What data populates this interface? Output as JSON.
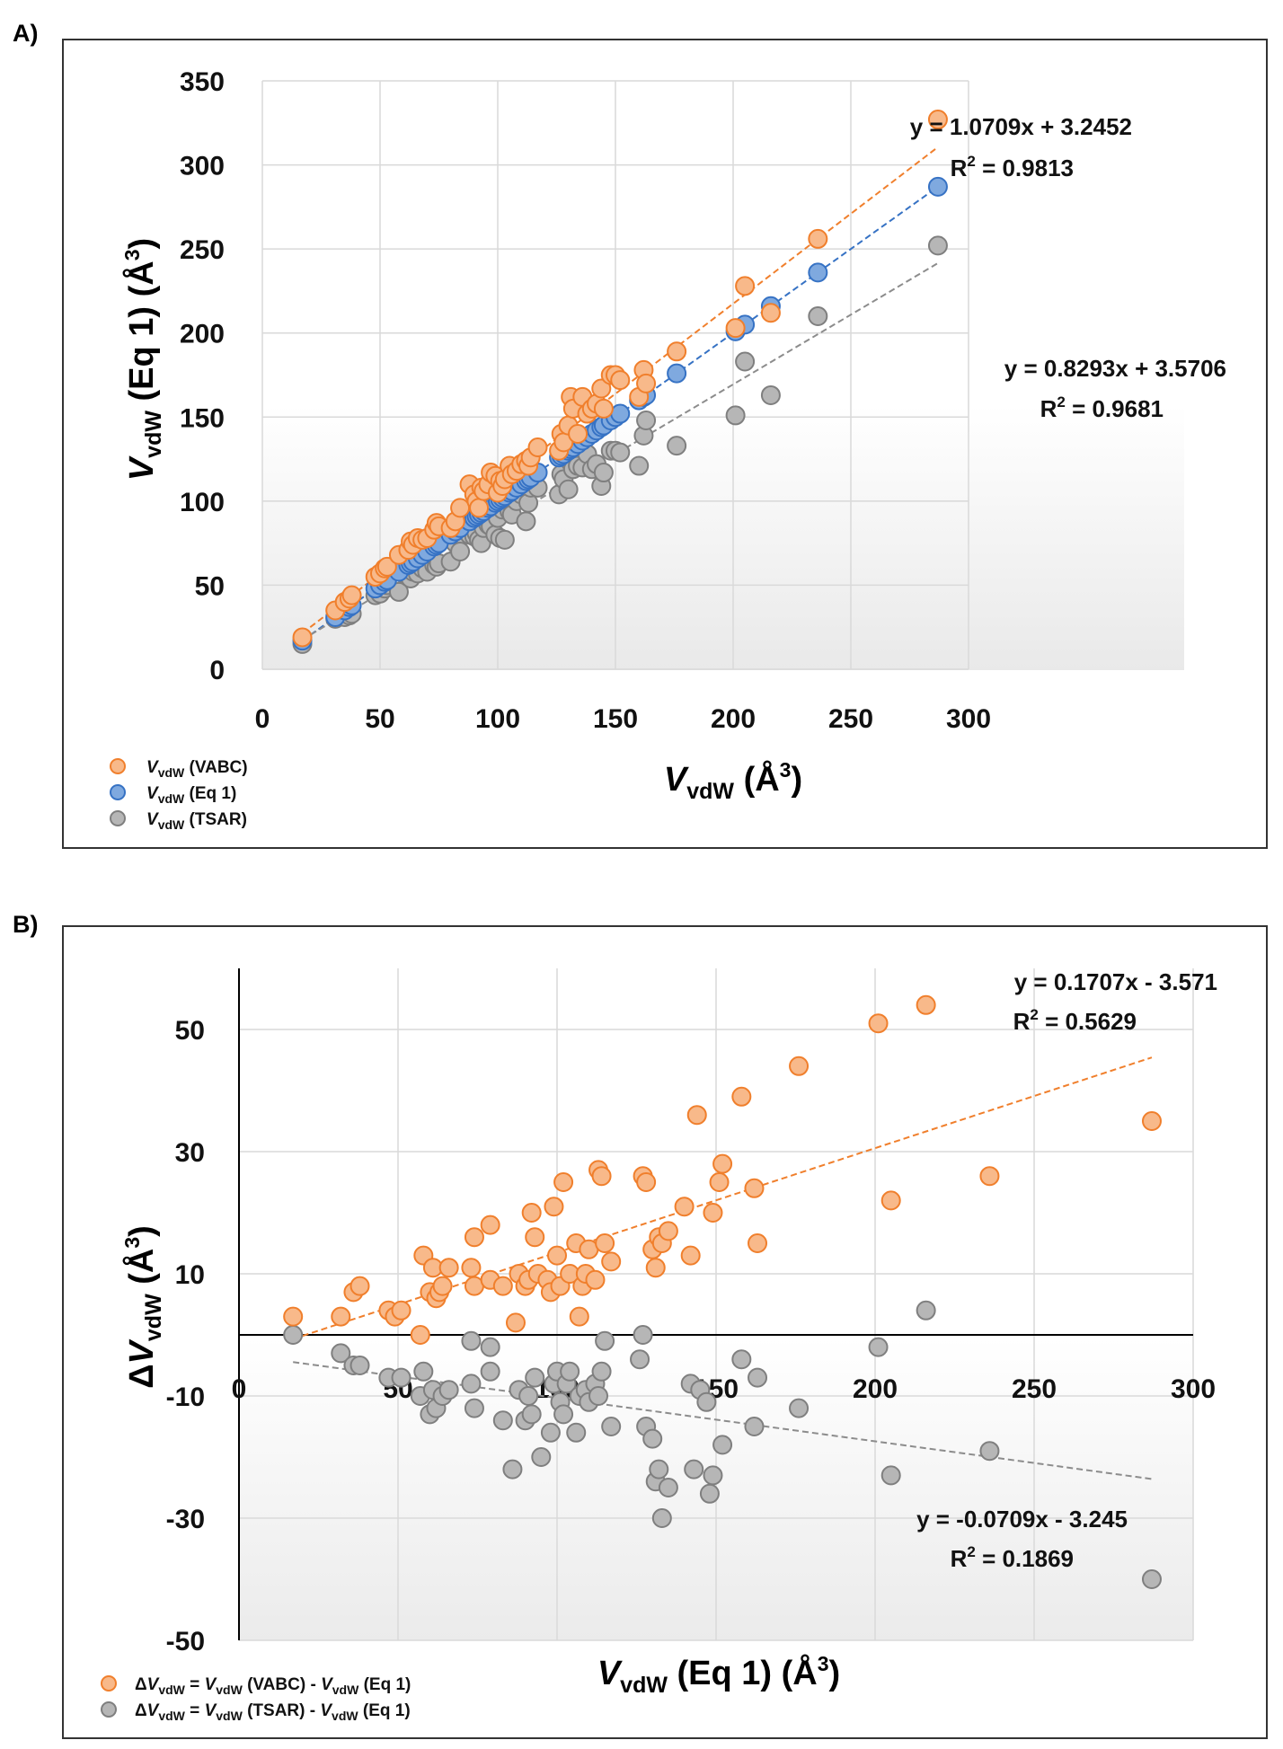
{
  "colors": {
    "vabc_fill": "#f8b98a",
    "vabc_stroke": "#f07f2c",
    "eq1_fill": "#7fa9df",
    "eq1_stroke": "#3672c4",
    "tsar_fill": "#b6b6b6",
    "tsar_stroke": "#7f7f7f",
    "fit_vabc": "#f07f2c",
    "fit_eq1": "#3672c4",
    "fit_tsar": "#8c8c8c",
    "frame": "#333333"
  },
  "chart_data": [
    {
      "id": "A",
      "panel_label": "A)",
      "type": "scatter",
      "xlabel": {
        "main": "V",
        "sub": "vdW",
        "unit_open": " (Å",
        "sup": "3",
        "unit_close": ")"
      },
      "ylabel": {
        "main": "V",
        "sub": "vdW",
        "unit_open": " (Eq 1) (Å",
        "sup": "3",
        "unit_close": ")"
      },
      "xlim": [
        0,
        300
      ],
      "ylim": [
        0,
        350
      ],
      "xticks": [
        "0",
        "50",
        "100",
        "150",
        "200",
        "250",
        "300"
      ],
      "yticks": [
        "0",
        "50",
        "100",
        "150",
        "200",
        "250",
        "300",
        "350"
      ],
      "grid": true,
      "legend_position": "bottom-left",
      "legend": [
        {
          "main": "V",
          "sub": "vdW",
          "rest": " (VABC)"
        },
        {
          "main": "V",
          "sub": "vdW",
          "rest": " (Eq 1)"
        },
        {
          "main": "V",
          "sub": "vdW",
          "rest": " (TSAR)"
        }
      ],
      "equations": [
        {
          "line1": "y = 1.0709x + 3.2452",
          "r2_prefix": "R",
          "r2_sup": "2",
          "r2_value": " = 0.9813",
          "series": "VABC"
        },
        {
          "line1": "y = 0.8293x + 3.5706",
          "r2_prefix": "R",
          "r2_sup": "2",
          "r2_value": " = 0.9681",
          "series": "TSAR"
        }
      ],
      "trendlines": [
        {
          "series": "VABC",
          "slope": 1.0709,
          "intercept": 3.2452,
          "x_range": [
            17,
            287
          ]
        },
        {
          "series": "Eq 1",
          "slope": 1.0,
          "intercept": 0.0,
          "x_range": [
            17,
            287
          ]
        },
        {
          "series": "TSAR",
          "slope": 0.8293,
          "intercept": 3.5706,
          "x_range": [
            17,
            287
          ]
        }
      ],
      "x": [
        17,
        31,
        35,
        37,
        38,
        48,
        50,
        52,
        53,
        58,
        62,
        63,
        64,
        66,
        68,
        70,
        73,
        74,
        75,
        80,
        82,
        84,
        88,
        90,
        91,
        92,
        93,
        94,
        96,
        97,
        99,
        100,
        101,
        102,
        103,
        105,
        106,
        108,
        110,
        112,
        113,
        114,
        117,
        126,
        127,
        128,
        130,
        131,
        132,
        134,
        136,
        138,
        140,
        142,
        144,
        145,
        148,
        150,
        152,
        160,
        162,
        163,
        176,
        201,
        205,
        216,
        236,
        287
      ],
      "series": [
        {
          "name": "VABC",
          "values": [
            19,
            35,
            40,
            42,
            44,
            55,
            57,
            60,
            61,
            68,
            71,
            76,
            74,
            78,
            77,
            78,
            83,
            87,
            85,
            84,
            88,
            96,
            110,
            104,
            100,
            96,
            108,
            106,
            110,
            117,
            115,
            105,
            112,
            109,
            113,
            121,
            116,
            118,
            122,
            124,
            121,
            126,
            132,
            130,
            140,
            135,
            145,
            162,
            155,
            140,
            162,
            152,
            155,
            158,
            167,
            155,
            175,
            175,
            172,
            162,
            178,
            170,
            189,
            203,
            228,
            212,
            256,
            327
          ]
        },
        {
          "name": "Eq 1",
          "values": [
            17,
            31,
            35,
            37,
            38,
            48,
            50,
            52,
            53,
            58,
            62,
            63,
            64,
            66,
            68,
            70,
            73,
            74,
            75,
            80,
            82,
            84,
            88,
            90,
            91,
            92,
            93,
            94,
            96,
            97,
            99,
            100,
            101,
            102,
            103,
            105,
            106,
            108,
            110,
            112,
            113,
            114,
            117,
            126,
            127,
            128,
            130,
            131,
            132,
            134,
            136,
            138,
            140,
            142,
            144,
            145,
            148,
            150,
            152,
            160,
            162,
            163,
            176,
            201,
            205,
            216,
            236,
            287
          ]
        },
        {
          "name": "TSAR",
          "values": [
            15,
            30,
            31,
            32,
            33,
            44,
            45,
            48,
            50,
            46,
            55,
            54,
            58,
            57,
            60,
            58,
            62,
            61,
            63,
            64,
            75,
            70,
            80,
            79,
            81,
            77,
            75,
            84,
            86,
            85,
            80,
            90,
            78,
            95,
            77,
            94,
            92,
            100,
            104,
            88,
            99,
            108,
            108,
            104,
            116,
            113,
            107,
            123,
            119,
            121,
            120,
            128,
            119,
            122,
            109,
            117,
            130,
            130,
            129,
            121,
            139,
            148,
            133,
            151,
            183,
            163,
            210,
            252
          ]
        }
      ]
    },
    {
      "id": "B",
      "panel_label": "B)",
      "type": "scatter",
      "xlabel": {
        "main": "V",
        "sub": "vdW",
        "unit_open": " (Eq 1) (Å",
        "sup": "3",
        "unit_close": ")"
      },
      "ylabel": {
        "prefix": "Δ",
        "main": "V",
        "sub": "vdW",
        "unit_open": " (Å",
        "sup": "3",
        "unit_close": ")"
      },
      "xlim": [
        0,
        300
      ],
      "ylim": [
        -50,
        60
      ],
      "xticks": [
        "0",
        "50",
        "100",
        "150",
        "200",
        "250",
        "300"
      ],
      "yticks": [
        "-50",
        "-30",
        "-10",
        "10",
        "30",
        "50"
      ],
      "ytick_values": [
        -50,
        -30,
        -10,
        10,
        30,
        50
      ],
      "grid": true,
      "legend_position": "bottom-left",
      "legend": [
        {
          "prefix": "Δ",
          "main": "V",
          "sub": "vdW",
          "mid": " = ",
          "main2": "V",
          "sub2": "vdW",
          "rest": " (VABC) - ",
          "main3": "V",
          "sub3": "vdW",
          "rest2": " (Eq 1)"
        },
        {
          "prefix": "Δ",
          "main": "V",
          "sub": "vdW",
          "mid": " = ",
          "main2": "V",
          "sub2": "vdW",
          "rest": " (TSAR) - ",
          "main3": "V",
          "sub3": "vdW",
          "rest2": " (Eq 1)"
        }
      ],
      "equations": [
        {
          "line1": "y = 0.1707x - 3.571",
          "r2_prefix": "R",
          "r2_sup": "2",
          "r2_value": " = 0.5629",
          "series": "VABC"
        },
        {
          "line1": "y = -0.0709x - 3.245",
          "r2_prefix": "R",
          "r2_sup": "2",
          "r2_value": " = 0.1869",
          "series": "TSAR"
        }
      ],
      "trendlines": [
        {
          "series": "VABC",
          "slope": 0.1707,
          "intercept": -3.571,
          "x_range": [
            17,
            287
          ]
        },
        {
          "series": "TSAR",
          "slope": -0.0709,
          "intercept": -3.245,
          "x_range": [
            17,
            287
          ]
        }
      ],
      "series": [
        {
          "name": "VABC",
          "x": [
            17,
            32,
            36,
            38,
            47,
            49,
            51,
            57,
            58,
            60,
            61,
            62,
            63,
            64,
            66,
            73,
            74,
            74,
            79,
            79,
            83,
            87,
            88,
            90,
            91,
            92,
            93,
            94,
            97,
            98,
            99,
            100,
            101,
            102,
            104,
            106,
            107,
            108,
            109,
            110,
            112,
            113,
            114,
            115,
            117,
            127,
            128,
            130,
            131,
            132,
            133,
            135,
            140,
            142,
            144,
            149,
            151,
            152,
            158,
            162,
            163,
            176,
            201,
            205,
            216,
            236,
            287
          ],
          "y": [
            3,
            3,
            7,
            8,
            4,
            3,
            4,
            0,
            13,
            7,
            11,
            6,
            7,
            8,
            11,
            11,
            16,
            8,
            18,
            9,
            8,
            2,
            10,
            8,
            9,
            20,
            16,
            10,
            9,
            7,
            21,
            13,
            8,
            25,
            10,
            15,
            3,
            8,
            10,
            14,
            9,
            27,
            26,
            15,
            12,
            26,
            25,
            14,
            11,
            16,
            15,
            17,
            21,
            13,
            36,
            20,
            25,
            28,
            39,
            24,
            15,
            44,
            51,
            22,
            54,
            26,
            35
          ]
        },
        {
          "name": "TSAR",
          "x": [
            17,
            32,
            36,
            38,
            47,
            51,
            57,
            58,
            60,
            61,
            62,
            64,
            66,
            73,
            73,
            74,
            79,
            79,
            83,
            86,
            88,
            90,
            91,
            92,
            93,
            95,
            98,
            99,
            100,
            101,
            102,
            103,
            104,
            106,
            107,
            109,
            110,
            112,
            113,
            114,
            115,
            117,
            126,
            127,
            128,
            130,
            131,
            132,
            133,
            135,
            142,
            143,
            145,
            147,
            148,
            149,
            152,
            158,
            162,
            163,
            176,
            201,
            205,
            216,
            236,
            287
          ],
          "y": [
            0,
            -3,
            -5,
            -5,
            -7,
            -7,
            -10,
            -6,
            -13,
            -9,
            -12,
            -10,
            -9,
            -1,
            -8,
            -12,
            -6,
            -2,
            -14,
            -22,
            -9,
            -14,
            -10,
            -13,
            -7,
            -20,
            -16,
            -8,
            -6,
            -11,
            -13,
            -8,
            -6,
            -16,
            -10,
            -9,
            -11,
            -8,
            -10,
            -6,
            -1,
            -15,
            -4,
            0,
            -15,
            -17,
            -24,
            -22,
            -30,
            -25,
            -8,
            -22,
            -9,
            -11,
            -26,
            -23,
            -18,
            -4,
            -15,
            -7,
            -12,
            -2,
            -23,
            4,
            -19,
            -40
          ]
        }
      ]
    }
  ]
}
